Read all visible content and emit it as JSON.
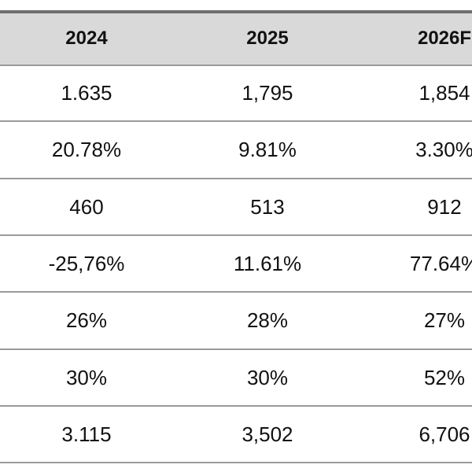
{
  "table": {
    "header": [
      "2024",
      "2025",
      "2026F"
    ],
    "rows": [
      [
        "1.635",
        "1,795",
        "1,854"
      ],
      [
        "20.78%",
        "9.81%",
        "3.30%"
      ],
      [
        "460",
        "513",
        "912"
      ],
      [
        "-25,76%",
        "11.61%",
        "77.64%"
      ],
      [
        "26%",
        "28%",
        "27%"
      ],
      [
        "30%",
        "30%",
        "52%"
      ],
      [
        "3.115",
        "3,502",
        "6,706"
      ]
    ]
  }
}
